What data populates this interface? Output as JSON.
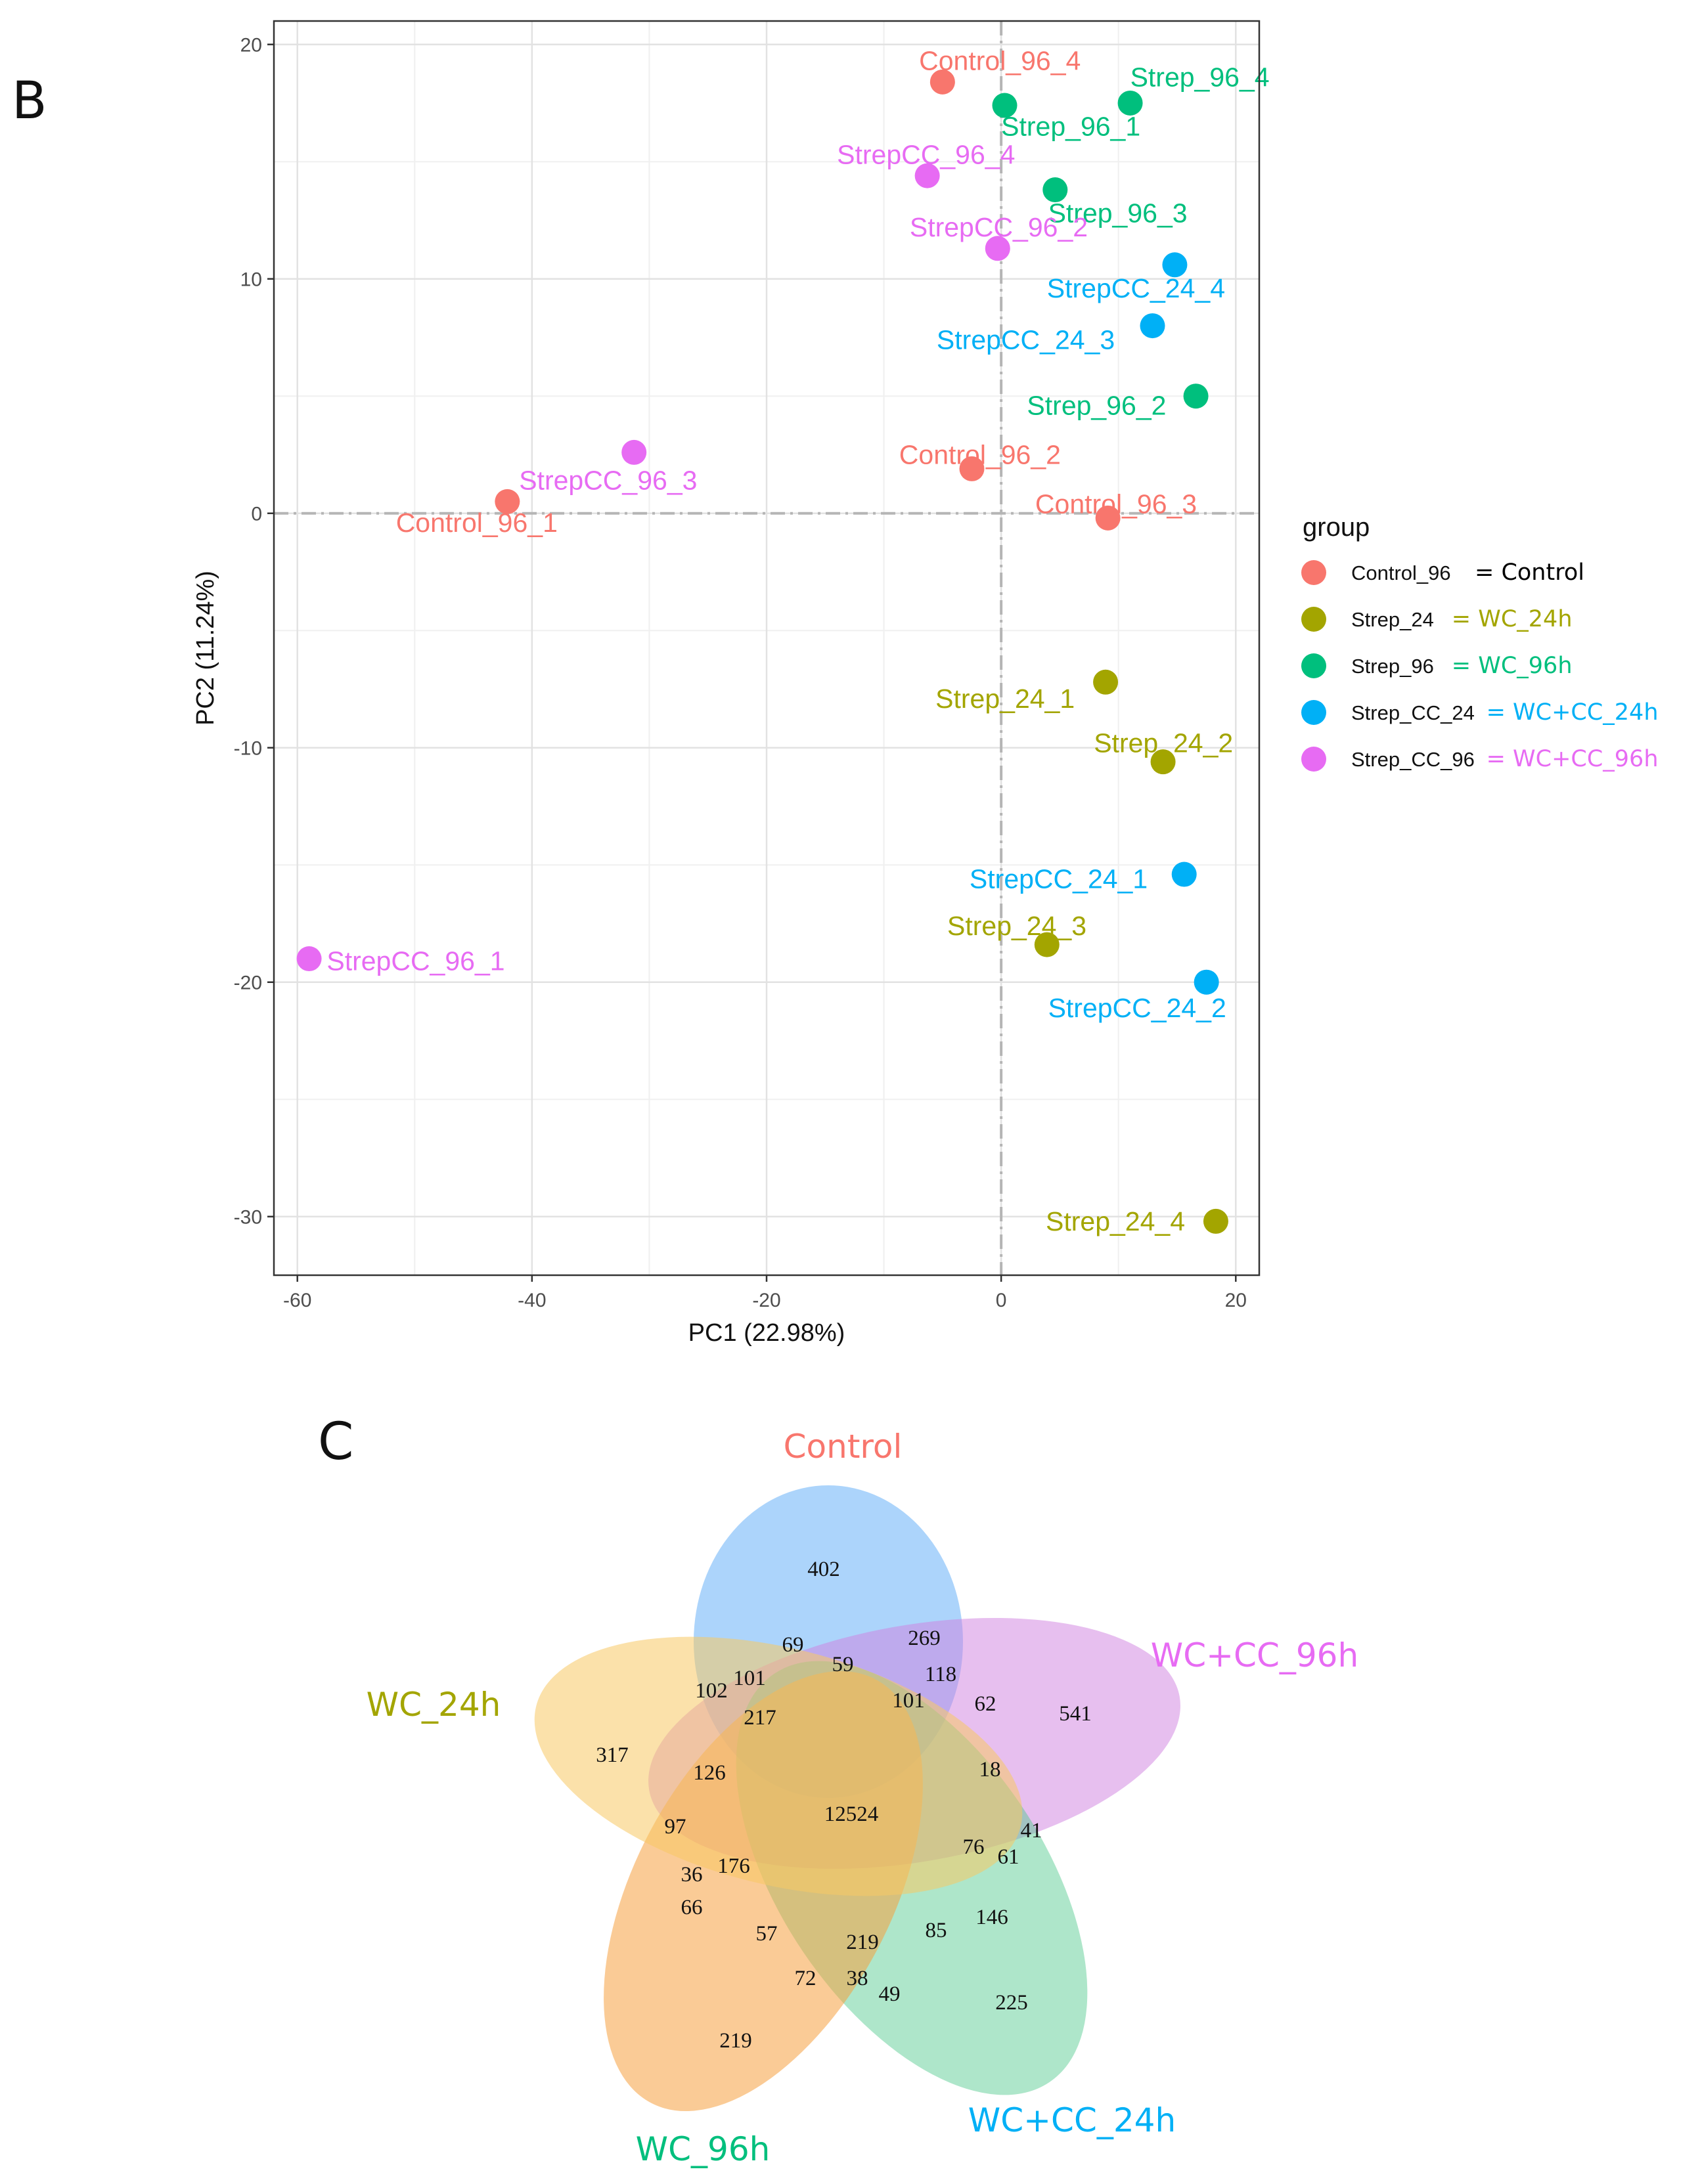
{
  "panels": {
    "pca_letter": "B",
    "venn_letter": "C"
  },
  "colors": {
    "Control_96": "#F8766D",
    "Strep_24": "#A3A500",
    "Strep_96": "#00BF7D",
    "Strep_CC_24": "#00B0F6",
    "Strep_CC_96": "#E76BF3",
    "legend_Control": "#F8766D",
    "legend_Strep_24": "#A3A500",
    "legend_Strep_96": "#00BF7D",
    "legend_Strep_CC_24": "#00B0F6",
    "legend_Strep_CC_96": "#E76BF3"
  },
  "chart_data": [
    {
      "type": "scatter",
      "title": "",
      "xlabel": "PC1 (22.98%)",
      "ylabel": "PC2 (11.24%)",
      "xlim": [
        -62,
        22
      ],
      "ylim": [
        -32.5,
        21
      ],
      "xticks": [
        -60,
        -40,
        -20,
        0,
        20
      ],
      "yticks": [
        -30,
        -20,
        -10,
        0,
        10,
        20
      ],
      "grid": true,
      "reference_lines": {
        "x": 0,
        "y": 0
      },
      "legend": {
        "title": "group",
        "placement": "right",
        "entries": [
          {
            "group": "Control_96",
            "key": "Control_96",
            "label": "= Control"
          },
          {
            "group": "Strep_24",
            "key": "Strep_24",
            "label": "= WC_24h"
          },
          {
            "group": "Strep_96",
            "key": "Strep_96",
            "label": "= WC_96h"
          },
          {
            "group": "Strep_CC_24",
            "key": "Strep_CC_24",
            "label": "= WC+CC_24h"
          },
          {
            "group": "Strep_CC_96",
            "key": "Strep_CC_96",
            "label": "= WC+CC_96h"
          }
        ]
      },
      "points": [
        {
          "label": "Control_96_4",
          "group": "Control_96",
          "x": -5.0,
          "y": 18.4,
          "lx": -7.0,
          "ly": 19.3
        },
        {
          "label": "Strep_96_4",
          "group": "Strep_96",
          "x": 11.0,
          "y": 17.5,
          "lx": 11.0,
          "ly": 18.6
        },
        {
          "label": "Strep_96_1",
          "group": "Strep_96",
          "x": 0.3,
          "y": 17.4,
          "lx": 0.0,
          "ly": 16.5
        },
        {
          "label": "StrepCC_96_4",
          "group": "Strep_CC_96",
          "x": -6.3,
          "y": 14.4,
          "lx": -14.0,
          "ly": 15.3
        },
        {
          "label": "Strep_96_3",
          "group": "Strep_96",
          "x": 4.6,
          "y": 13.8,
          "lx": 4.0,
          "ly": 12.8
        },
        {
          "label": "StrepCC_96_2",
          "group": "Strep_CC_96",
          "x": -0.3,
          "y": 11.3,
          "lx": -7.8,
          "ly": 12.2
        },
        {
          "label": "StrepCC_24_4",
          "group": "Strep_CC_24",
          "x": 14.8,
          "y": 10.6,
          "lx": 3.9,
          "ly": 9.6
        },
        {
          "label": "StrepCC_24_3",
          "group": "Strep_CC_24",
          "x": 12.9,
          "y": 8.0,
          "lx": -5.5,
          "ly": 7.4
        },
        {
          "label": "Strep_96_2",
          "group": "Strep_96",
          "x": 16.6,
          "y": 5.0,
          "lx": 2.2,
          "ly": 4.6
        },
        {
          "label": "StrepCC_96_3",
          "group": "Strep_CC_96",
          "x": -31.3,
          "y": 2.6,
          "lx": -41.1,
          "ly": 1.4
        },
        {
          "label": "Control_96_2",
          "group": "Control_96",
          "x": -2.5,
          "y": 1.9,
          "lx": -8.7,
          "ly": 2.5
        },
        {
          "label": "Control_96_1",
          "group": "Control_96",
          "x": -42.1,
          "y": 0.5,
          "lx": -51.6,
          "ly": -0.4
        },
        {
          "label": "Control_96_3",
          "group": "Control_96",
          "x": 9.1,
          "y": -0.2,
          "lx": 2.9,
          "ly": 0.4
        },
        {
          "label": "Strep_24_1",
          "group": "Strep_24",
          "x": 8.9,
          "y": -7.2,
          "lx": -5.6,
          "ly": -7.9
        },
        {
          "label": "Strep_24_2",
          "group": "Strep_24",
          "x": 13.8,
          "y": -10.6,
          "lx": 7.9,
          "ly": -9.8
        },
        {
          "label": "StrepCC_24_1",
          "group": "Strep_CC_24",
          "x": 15.6,
          "y": -15.4,
          "lx": -2.7,
          "ly": -15.6
        },
        {
          "label": "Strep_24_3",
          "group": "Strep_24",
          "x": 3.9,
          "y": -18.4,
          "lx": -4.6,
          "ly": -17.6
        },
        {
          "label": "StrepCC_96_1",
          "group": "Strep_CC_96",
          "x": -59.0,
          "y": -19.0,
          "lx": -57.5,
          "ly": -19.1
        },
        {
          "label": "Strep_24_4",
          "group": "Strep_24",
          "x": 18.3,
          "y": -30.2,
          "lx": 3.8,
          "ly": -30.2
        },
        {
          "label": "StrepCC_24_2",
          "group": "Strep_CC_24",
          "x": 17.5,
          "y": -20.0,
          "lx": 4.0,
          "ly": -21.1
        }
      ]
    },
    {
      "type": "venn",
      "sets": [
        "Control",
        "WC+CC_96h",
        "WC+CC_24h",
        "WC_96h",
        "WC_24h"
      ],
      "set_colors": {
        "Control": "#F8766D",
        "WC+CC_96h": "#E76BF3",
        "WC+CC_24h": "#00B0F6",
        "WC_96h": "#00BF7D",
        "WC_24h": "#A3A500"
      },
      "regions": [
        402,
        541,
        225,
        219,
        317,
        269,
        69,
        59,
        118,
        101,
        102,
        217,
        101,
        62,
        18,
        126,
        12524,
        41,
        97,
        76,
        61,
        36,
        176,
        146,
        66,
        57,
        219,
        85,
        72,
        38,
        49
      ]
    }
  ]
}
